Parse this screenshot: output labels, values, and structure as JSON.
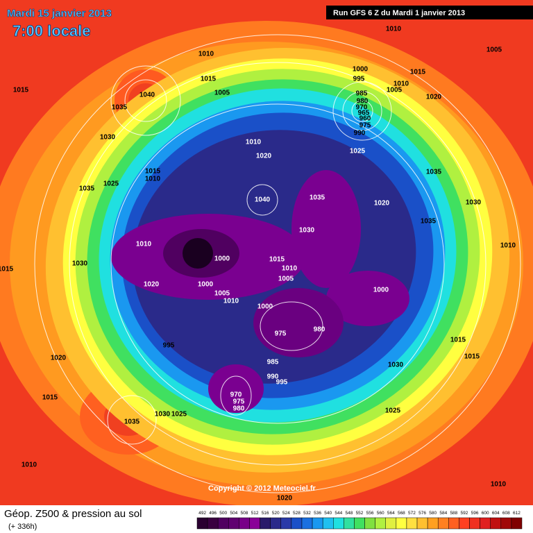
{
  "header": {
    "date": "Mardi 15 janvier 2013",
    "time": "7:00 locale",
    "run": "Run GFS 6 Z du Mardi 1 janvier 2013"
  },
  "footer": {
    "title": "Géop. Z500 & pression au sol",
    "lead": "(+ 336h)",
    "copyright": "Copyright © 2012 Meteociel.fr"
  },
  "scale": {
    "values": [
      492,
      496,
      500,
      504,
      508,
      512,
      516,
      520,
      524,
      528,
      532,
      536,
      540,
      544,
      548,
      552,
      556,
      560,
      564,
      568,
      572,
      576,
      580,
      584,
      588,
      592,
      596,
      600,
      604,
      608,
      612
    ],
    "colors": [
      "#2a0030",
      "#3a0040",
      "#500060",
      "#600070",
      "#780088",
      "#8a0098",
      "#2a1a6a",
      "#2a2a8a",
      "#2a3aa8",
      "#1a50c8",
      "#1a70e0",
      "#1a98f0",
      "#20c0f0",
      "#20e0e0",
      "#30e0a0",
      "#40e060",
      "#80e040",
      "#b0f040",
      "#e0f040",
      "#ffff40",
      "#ffe040",
      "#ffc030",
      "#ffa020",
      "#ff8020",
      "#ff6020",
      "#ff4020",
      "#f03020",
      "#e02020",
      "#c01010",
      "#a00808",
      "#800000"
    ]
  },
  "isobars": [
    1010,
    1010,
    1005,
    1015,
    1015,
    1040,
    1035,
    1005,
    1000,
    995,
    1015,
    1010,
    1005,
    1020,
    985,
    980,
    970,
    965,
    960,
    975,
    990,
    1030,
    1010,
    1020,
    1025,
    1015,
    1010,
    1035,
    1025,
    1040,
    1035,
    1035,
    1020,
    1030,
    1035,
    1030,
    1010,
    1000,
    1015,
    1010,
    1005,
    1030,
    1015,
    1010,
    1020,
    1000,
    1005,
    1010,
    1000,
    1000,
    980,
    975,
    995,
    1015,
    1015,
    1030,
    1020,
    985,
    990,
    995,
    970,
    975,
    980,
    1015,
    1035,
    1030,
    1025,
    1025,
    1010,
    1010,
    1020
  ]
}
